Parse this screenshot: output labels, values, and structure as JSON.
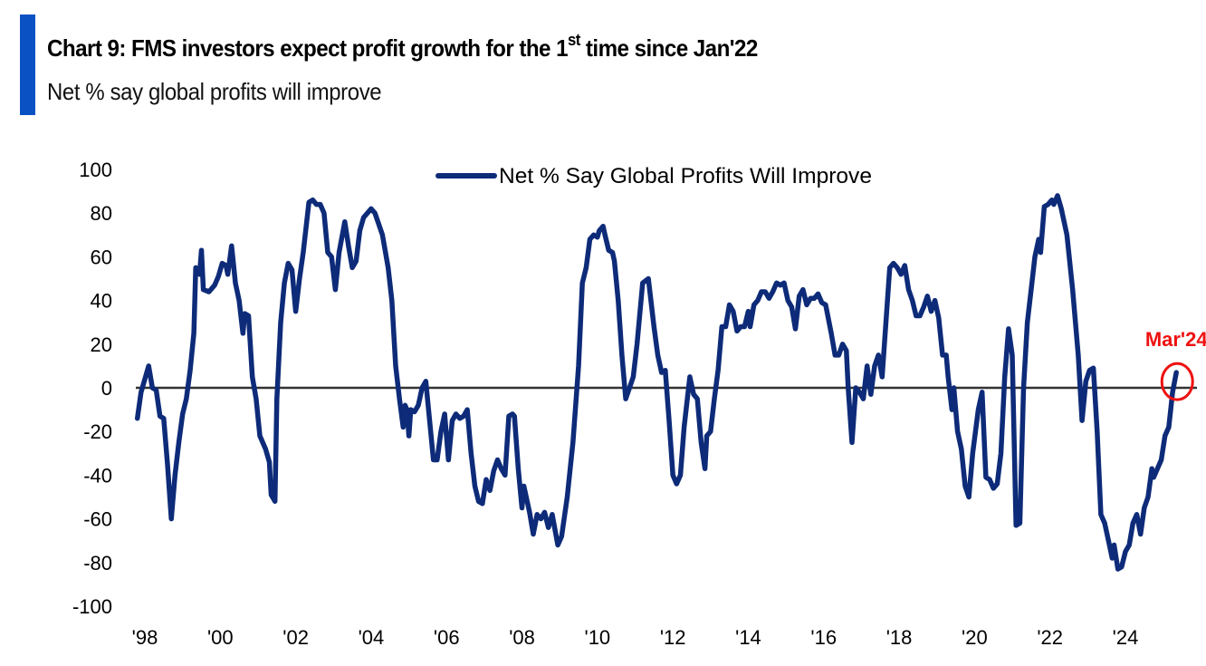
{
  "header": {
    "title_main": "Chart 9: FMS investors expect profit growth for the 1",
    "title_sup": "st",
    "title_end": " time since Jan'22",
    "subtitle": "Net % say global profits will improve",
    "accent_color": "#0a52c4"
  },
  "chart_data": {
    "type": "line",
    "title": "Chart 9: FMS investors expect profit growth for the 1st time since Jan'22",
    "subtitle": "Net % say global profits will improve",
    "xlabel": "",
    "ylabel": "",
    "xlim": [
      1998,
      2026.6
    ],
    "ylim": [
      -100,
      100
    ],
    "y_ticks": [
      100,
      80,
      60,
      40,
      20,
      0,
      -20,
      -40,
      -60,
      -80,
      -100
    ],
    "x_ticks": [
      {
        "value": 1998,
        "label": "'98"
      },
      {
        "value": 2000,
        "label": "'00"
      },
      {
        "value": 2002,
        "label": "'02"
      },
      {
        "value": 2004,
        "label": "'04"
      },
      {
        "value": 2006,
        "label": "'06"
      },
      {
        "value": 2008,
        "label": "'08"
      },
      {
        "value": 2010,
        "label": "'10"
      },
      {
        "value": 2012,
        "label": "'12"
      },
      {
        "value": 2014,
        "label": "'14"
      },
      {
        "value": 2016,
        "label": "'16"
      },
      {
        "value": 2018,
        "label": "'18"
      },
      {
        "value": 2020,
        "label": "'20"
      },
      {
        "value": 2022,
        "label": "'22"
      },
      {
        "value": 2024,
        "label": "'24"
      }
    ],
    "grid": false,
    "zero_line": true,
    "legend": {
      "position": "top-center",
      "entries": [
        "Net % Say Global Profits Will Improve"
      ]
    },
    "annotation": {
      "label": "Mar'24",
      "x": 2024.2,
      "y": 7,
      "color": "#ee1111"
    },
    "series": [
      {
        "name": "Net % Say Global Profits Will Improve",
        "color": "#0d2b78",
        "points": [
          [
            1997.8,
            -14
          ],
          [
            1997.9,
            -2
          ],
          [
            1998.0,
            4
          ],
          [
            1998.1,
            10
          ],
          [
            1998.2,
            0
          ],
          [
            1998.3,
            -1
          ],
          [
            1998.4,
            -13
          ],
          [
            1998.5,
            -14
          ],
          [
            1998.6,
            -35
          ],
          [
            1998.7,
            -60
          ],
          [
            1998.8,
            -40
          ],
          [
            1998.9,
            -25
          ],
          [
            1999.0,
            -12
          ],
          [
            1999.1,
            -5
          ],
          [
            1999.2,
            8
          ],
          [
            1999.3,
            25
          ],
          [
            1999.35,
            55
          ],
          [
            1999.45,
            52
          ],
          [
            1999.5,
            63
          ],
          [
            1999.55,
            45
          ],
          [
            1999.7,
            44
          ],
          [
            1999.85,
            47
          ],
          [
            1999.95,
            51
          ],
          [
            2000.05,
            57
          ],
          [
            2000.15,
            56
          ],
          [
            2000.2,
            52
          ],
          [
            2000.3,
            65
          ],
          [
            2000.4,
            48
          ],
          [
            2000.5,
            40
          ],
          [
            2000.6,
            25
          ],
          [
            2000.65,
            34
          ],
          [
            2000.75,
            33
          ],
          [
            2000.85,
            5
          ],
          [
            2000.95,
            -5
          ],
          [
            2001.05,
            -22
          ],
          [
            2001.2,
            -28
          ],
          [
            2001.3,
            -34
          ],
          [
            2001.35,
            -49
          ],
          [
            2001.45,
            -52
          ],
          [
            2001.5,
            -5
          ],
          [
            2001.6,
            30
          ],
          [
            2001.7,
            48
          ],
          [
            2001.8,
            57
          ],
          [
            2001.9,
            54
          ],
          [
            2002.0,
            35
          ],
          [
            2002.1,
            50
          ],
          [
            2002.2,
            62
          ],
          [
            2002.35,
            85
          ],
          [
            2002.45,
            86
          ],
          [
            2002.55,
            84
          ],
          [
            2002.65,
            84
          ],
          [
            2002.75,
            80
          ],
          [
            2002.85,
            62
          ],
          [
            2002.95,
            60
          ],
          [
            2003.05,
            45
          ],
          [
            2003.15,
            62
          ],
          [
            2003.3,
            76
          ],
          [
            2003.4,
            65
          ],
          [
            2003.5,
            55
          ],
          [
            2003.6,
            58
          ],
          [
            2003.7,
            72
          ],
          [
            2003.8,
            78
          ],
          [
            2003.9,
            80
          ],
          [
            2004.0,
            82
          ],
          [
            2004.1,
            80
          ],
          [
            2004.2,
            75
          ],
          [
            2004.3,
            70
          ],
          [
            2004.45,
            55
          ],
          [
            2004.55,
            40
          ],
          [
            2004.65,
            10
          ],
          [
            2004.75,
            -5
          ],
          [
            2004.85,
            -18
          ],
          [
            2004.9,
            -8
          ],
          [
            2004.95,
            -10
          ],
          [
            2005.0,
            -22
          ],
          [
            2005.05,
            -10
          ],
          [
            2005.15,
            -11
          ],
          [
            2005.25,
            -8
          ],
          [
            2005.35,
            0
          ],
          [
            2005.45,
            3
          ],
          [
            2005.55,
            -15
          ],
          [
            2005.65,
            -33
          ],
          [
            2005.75,
            -33
          ],
          [
            2005.85,
            -20
          ],
          [
            2005.95,
            -12
          ],
          [
            2006.05,
            -33
          ],
          [
            2006.15,
            -15
          ],
          [
            2006.25,
            -12
          ],
          [
            2006.35,
            -14
          ],
          [
            2006.45,
            -13
          ],
          [
            2006.55,
            -10
          ],
          [
            2006.65,
            -30
          ],
          [
            2006.75,
            -45
          ],
          [
            2006.85,
            -52
          ],
          [
            2006.95,
            -53
          ],
          [
            2007.05,
            -42
          ],
          [
            2007.15,
            -47
          ],
          [
            2007.25,
            -38
          ],
          [
            2007.35,
            -33
          ],
          [
            2007.45,
            -37
          ],
          [
            2007.55,
            -40
          ],
          [
            2007.65,
            -13
          ],
          [
            2007.75,
            -12
          ],
          [
            2007.8,
            -13
          ],
          [
            2007.9,
            -37
          ],
          [
            2008.0,
            -55
          ],
          [
            2008.05,
            -45
          ],
          [
            2008.1,
            -49
          ],
          [
            2008.2,
            -57
          ],
          [
            2008.3,
            -67
          ],
          [
            2008.4,
            -58
          ],
          [
            2008.5,
            -60
          ],
          [
            2008.6,
            -57
          ],
          [
            2008.7,
            -64
          ],
          [
            2008.8,
            -58
          ],
          [
            2008.95,
            -72
          ],
          [
            2009.05,
            -68
          ],
          [
            2009.2,
            -50
          ],
          [
            2009.35,
            -25
          ],
          [
            2009.5,
            10
          ],
          [
            2009.6,
            48
          ],
          [
            2009.7,
            55
          ],
          [
            2009.8,
            68
          ],
          [
            2009.9,
            70
          ],
          [
            2010.0,
            69
          ],
          [
            2010.05,
            72
          ],
          [
            2010.15,
            74
          ],
          [
            2010.2,
            70
          ],
          [
            2010.3,
            63
          ],
          [
            2010.4,
            62
          ],
          [
            2010.45,
            58
          ],
          [
            2010.55,
            40
          ],
          [
            2010.65,
            15
          ],
          [
            2010.75,
            -5
          ],
          [
            2010.85,
            0
          ],
          [
            2010.95,
            5
          ],
          [
            2011.05,
            20
          ],
          [
            2011.2,
            48
          ],
          [
            2011.35,
            50
          ],
          [
            2011.5,
            28
          ],
          [
            2011.6,
            15
          ],
          [
            2011.7,
            7
          ],
          [
            2011.8,
            8
          ],
          [
            2011.9,
            -15
          ],
          [
            2012.0,
            -40
          ],
          [
            2012.1,
            -44
          ],
          [
            2012.2,
            -40
          ],
          [
            2012.3,
            -18
          ],
          [
            2012.45,
            5
          ],
          [
            2012.55,
            -3
          ],
          [
            2012.65,
            -5
          ],
          [
            2012.75,
            -25
          ],
          [
            2012.85,
            -37
          ],
          [
            2012.9,
            -22
          ],
          [
            2013.0,
            -20
          ],
          [
            2013.1,
            -5
          ],
          [
            2013.2,
            8
          ],
          [
            2013.3,
            28
          ],
          [
            2013.4,
            28
          ],
          [
            2013.5,
            38
          ],
          [
            2013.6,
            35
          ],
          [
            2013.7,
            26
          ],
          [
            2013.8,
            28
          ],
          [
            2013.9,
            28
          ],
          [
            2014.0,
            35
          ],
          [
            2014.05,
            28
          ],
          [
            2014.15,
            38
          ],
          [
            2014.25,
            40
          ],
          [
            2014.35,
            44
          ],
          [
            2014.45,
            44
          ],
          [
            2014.55,
            41
          ],
          [
            2014.65,
            44
          ],
          [
            2014.75,
            48
          ],
          [
            2014.85,
            47
          ],
          [
            2014.95,
            48
          ],
          [
            2015.05,
            40
          ],
          [
            2015.15,
            37
          ],
          [
            2015.25,
            27
          ],
          [
            2015.35,
            42
          ],
          [
            2015.45,
            45
          ],
          [
            2015.55,
            38
          ],
          [
            2015.65,
            41
          ],
          [
            2015.75,
            41
          ],
          [
            2015.85,
            43
          ],
          [
            2015.95,
            39
          ],
          [
            2016.05,
            38
          ],
          [
            2016.2,
            25
          ],
          [
            2016.3,
            15
          ],
          [
            2016.4,
            15
          ],
          [
            2016.5,
            20
          ],
          [
            2016.6,
            17
          ],
          [
            2016.65,
            0
          ],
          [
            2016.75,
            -25
          ],
          [
            2016.85,
            0
          ],
          [
            2016.95,
            -2
          ],
          [
            2017.05,
            -5
          ],
          [
            2017.15,
            10
          ],
          [
            2017.25,
            -3
          ],
          [
            2017.35,
            10
          ],
          [
            2017.45,
            15
          ],
          [
            2017.55,
            5
          ],
          [
            2017.65,
            30
          ],
          [
            2017.75,
            55
          ],
          [
            2017.85,
            57
          ],
          [
            2017.95,
            55
          ],
          [
            2018.05,
            52
          ],
          [
            2018.15,
            56
          ],
          [
            2018.25,
            45
          ],
          [
            2018.35,
            40
          ],
          [
            2018.45,
            33
          ],
          [
            2018.55,
            33
          ],
          [
            2018.65,
            37
          ],
          [
            2018.75,
            42
          ],
          [
            2018.85,
            35
          ],
          [
            2018.95,
            40
          ],
          [
            2019.05,
            32
          ],
          [
            2019.15,
            15
          ],
          [
            2019.25,
            15
          ],
          [
            2019.3,
            5
          ],
          [
            2019.4,
            -10
          ],
          [
            2019.45,
            0
          ],
          [
            2019.55,
            -20
          ],
          [
            2019.65,
            -28
          ],
          [
            2019.75,
            -45
          ],
          [
            2019.85,
            -50
          ],
          [
            2019.95,
            -30
          ],
          [
            2020.1,
            -10
          ],
          [
            2020.2,
            -2
          ],
          [
            2020.3,
            -41
          ],
          [
            2020.4,
            -42
          ],
          [
            2020.5,
            -46
          ],
          [
            2020.6,
            -44
          ],
          [
            2020.7,
            -30
          ],
          [
            2020.8,
            5
          ],
          [
            2020.9,
            27
          ],
          [
            2021.0,
            15
          ],
          [
            2021.1,
            -63
          ],
          [
            2021.2,
            -62
          ],
          [
            2021.3,
            0
          ],
          [
            2021.4,
            30
          ],
          [
            2021.5,
            45
          ],
          [
            2021.6,
            60
          ],
          [
            2021.7,
            68
          ],
          [
            2021.75,
            62
          ],
          [
            2021.85,
            83
          ],
          [
            2021.95,
            84
          ],
          [
            2022.05,
            86
          ],
          [
            2022.1,
            84
          ],
          [
            2022.2,
            88
          ],
          [
            2022.3,
            82
          ],
          [
            2022.45,
            70
          ],
          [
            2022.6,
            45
          ],
          [
            2022.75,
            15
          ],
          [
            2022.85,
            -15
          ],
          [
            2022.95,
            3
          ],
          [
            2023.05,
            8
          ],
          [
            2023.15,
            9
          ],
          [
            2023.25,
            -20
          ],
          [
            2023.35,
            -58
          ],
          [
            2023.45,
            -62
          ],
          [
            2023.55,
            -70
          ],
          [
            2023.65,
            -78
          ],
          [
            2023.7,
            -72
          ],
          [
            2023.8,
            -83
          ],
          [
            2023.9,
            -82
          ],
          [
            2024.0,
            -75
          ],
          [
            2024.1,
            -72
          ],
          [
            2024.2,
            -62
          ],
          [
            2024.3,
            -58
          ],
          [
            2024.4,
            -67
          ],
          [
            2024.5,
            -55
          ],
          [
            2024.6,
            -50
          ],
          [
            2024.7,
            -37
          ],
          [
            2024.75,
            -41
          ],
          [
            2024.85,
            -37
          ],
          [
            2024.95,
            -33
          ],
          [
            2025.05,
            -22
          ],
          [
            2025.15,
            -18
          ],
          [
            2025.25,
            -2
          ],
          [
            2025.35,
            7
          ]
        ]
      }
    ]
  }
}
